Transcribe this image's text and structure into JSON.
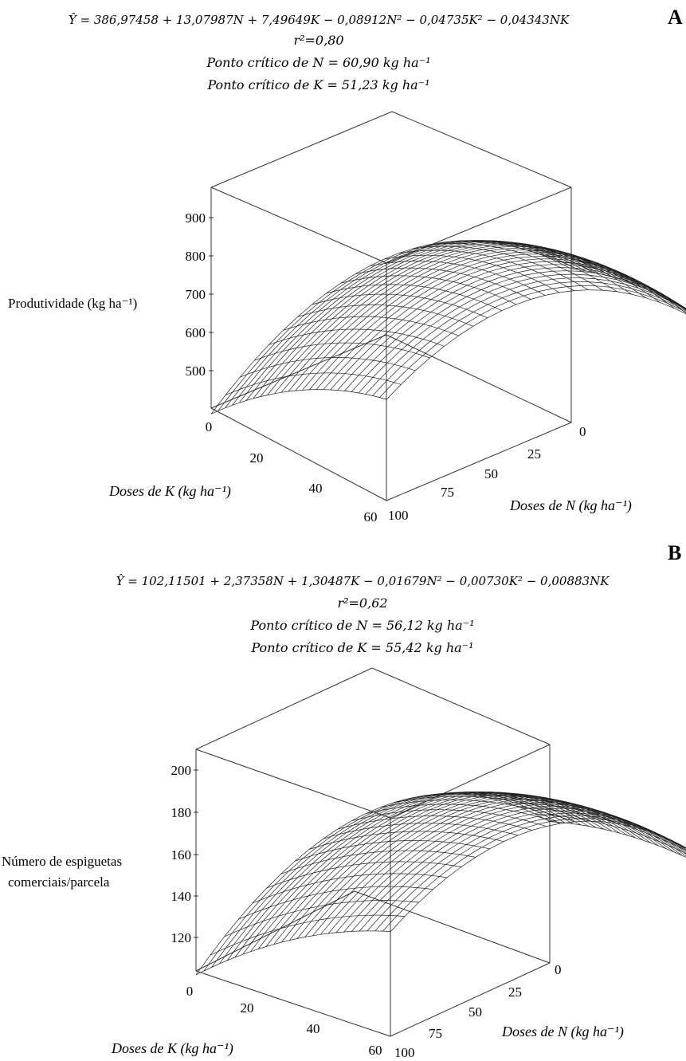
{
  "panels": [
    {
      "letter": "A",
      "equation": "Ŷ = 386,97458 + 13,07987N + 7,49649K − 0,08912N² − 0,04735K² − 0,04343NK",
      "r2": "r²=0,80",
      "critical_n": "Ponto crítico de N = 60,90 kg ha⁻¹",
      "critical_k": "Ponto crítico de K = 51,23 kg ha⁻¹",
      "zlabel": "Produtividade (kg ha⁻¹)",
      "klabel": "Doses de K (kg ha⁻¹)",
      "nlabel": "Doses de N (kg ha⁻¹)",
      "z_ticks": [
        "500",
        "600",
        "700",
        "800",
        "900"
      ],
      "k_ticks": [
        "0",
        "20",
        "40",
        "60"
      ],
      "n_ticks": [
        "0",
        "25",
        "50",
        "75",
        "100"
      ]
    },
    {
      "letter": "B",
      "equation": "Ŷ = 102,11501 + 2,37358N + 1,30487K − 0,01679N² − 0,00730K² − 0,00883NK",
      "r2": "r²=0,62",
      "critical_n": "Ponto crítico de N = 56,12 kg ha⁻¹",
      "critical_k": "Ponto crítico de K = 55,42 kg ha⁻¹",
      "zlabel_line1": "Número de espiguetas",
      "zlabel_line2": "comerciais/parcela",
      "klabel": "Doses de K (kg ha⁻¹)",
      "nlabel": "Doses de N (kg ha⁻¹)",
      "z_ticks": [
        "120",
        "140",
        "160",
        "180",
        "200"
      ],
      "k_ticks": [
        "0",
        "20",
        "40",
        "60"
      ],
      "n_ticks": [
        "0",
        "25",
        "50",
        "75",
        "100"
      ]
    }
  ],
  "chart_data": [
    {
      "type": "surface",
      "panel": "A",
      "x_variable": "Doses de N (kg ha⁻¹)",
      "y_variable": "Doses de K (kg ha⁻¹)",
      "z_variable": "Produtividade (kg ha⁻¹)",
      "coefficients": {
        "c": 386.97458,
        "N": 13.07987,
        "K": 7.49649,
        "N2": -0.08912,
        "K2": -0.04735,
        "NK": -0.04343
      },
      "xlim": [
        0,
        100
      ],
      "ylim": [
        0,
        60
      ],
      "zlim": [
        500,
        900
      ],
      "r2": 0.8,
      "critical_point": {
        "N": 60.9,
        "K": 51.23
      }
    },
    {
      "type": "surface",
      "panel": "B",
      "x_variable": "Doses de N (kg ha⁻¹)",
      "y_variable": "Doses de K (kg ha⁻¹)",
      "z_variable": "Número de espiguetas comerciais/parcela",
      "coefficients": {
        "c": 102.11501,
        "N": 2.37358,
        "K": 1.30487,
        "N2": -0.01679,
        "K2": -0.0073,
        "NK": -0.00883
      },
      "xlim": [
        0,
        100
      ],
      "ylim": [
        0,
        60
      ],
      "zlim": [
        120,
        200
      ],
      "r2": 0.62,
      "critical_point": {
        "N": 56.12,
        "K": 55.42
      }
    }
  ]
}
